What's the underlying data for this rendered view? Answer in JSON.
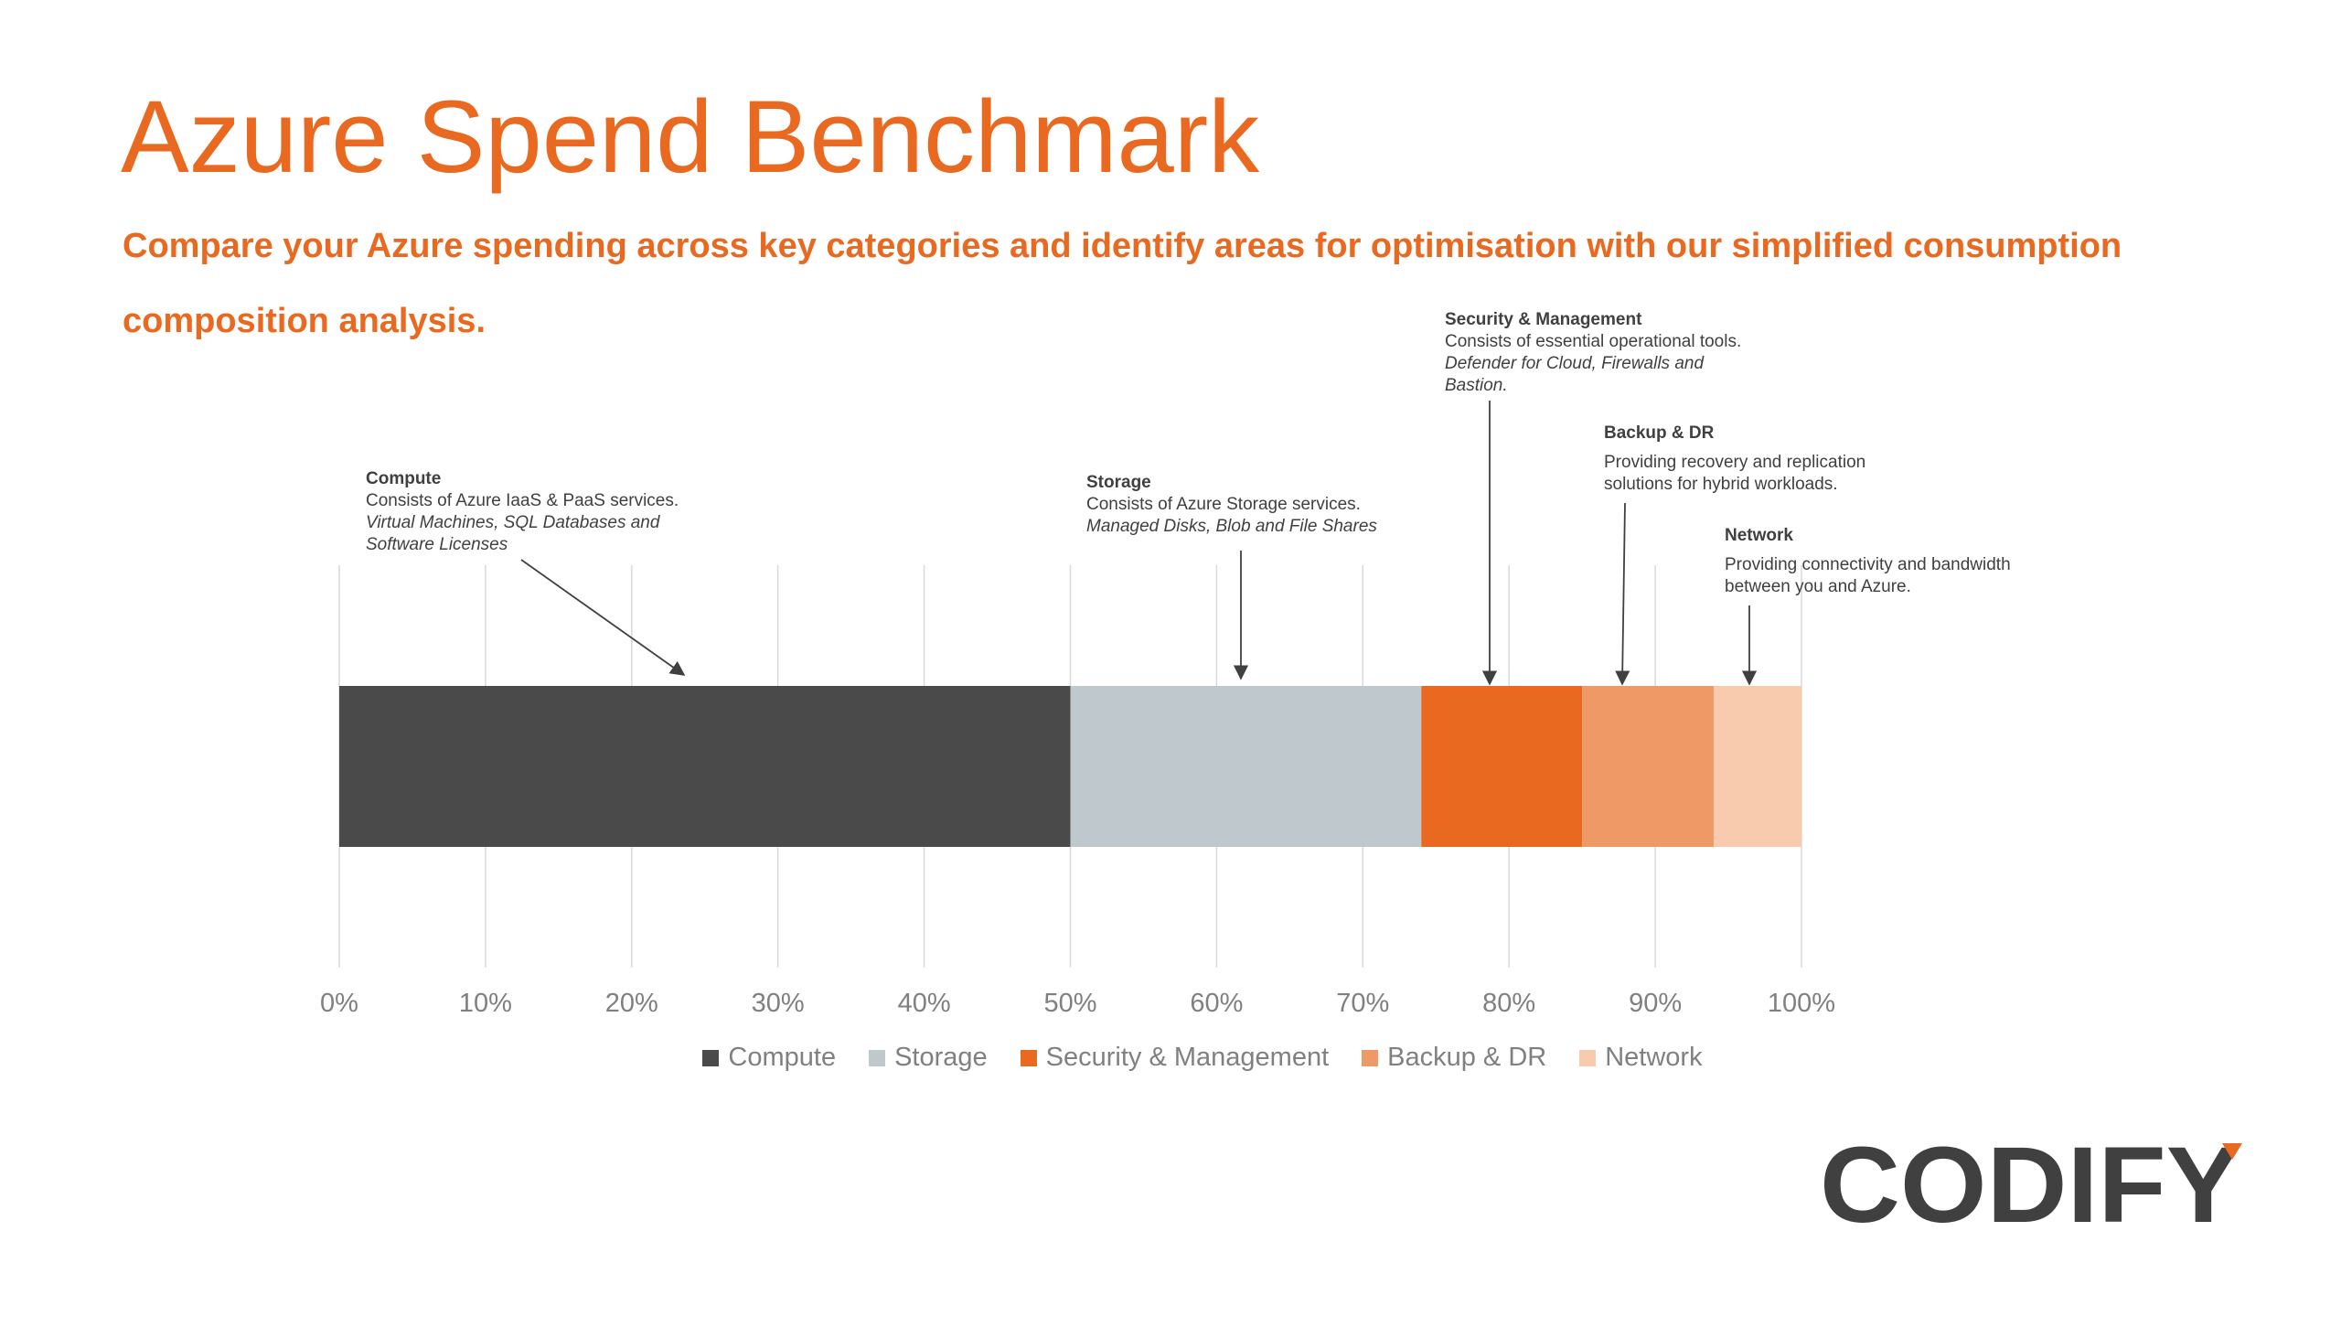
{
  "title": "Azure Spend Benchmark",
  "subtitle": "Compare your Azure spending across key categories and identify areas for optimisation with our simplified consumption composition analysis.",
  "annotations": {
    "compute": {
      "heading": "Compute",
      "line1": "Consists of Azure IaaS & PaaS services.",
      "line2": "Virtual Machines, SQL Databases and",
      "line3": "Software Licenses"
    },
    "storage": {
      "heading": "Storage",
      "line1": "Consists of Azure Storage services.",
      "line2": "Managed Disks, Blob and File Shares"
    },
    "security": {
      "heading": "Security & Management",
      "line1": "Consists of essential operational tools.",
      "line2": "Defender for Cloud, Firewalls and",
      "line3": "Bastion."
    },
    "backup": {
      "heading": "Backup & DR",
      "line1": "Providing recovery and replication",
      "line2": "solutions for hybrid workloads."
    },
    "network": {
      "heading": "Network",
      "line1": "Providing connectivity and bandwidth",
      "line2": "between you and Azure."
    }
  },
  "chart_data": {
    "type": "bar",
    "orientation": "horizontal",
    "stacked": true,
    "xlim": [
      0,
      100
    ],
    "ticks": [
      "0%",
      "10%",
      "20%",
      "30%",
      "40%",
      "50%",
      "60%",
      "70%",
      "80%",
      "90%",
      "100%"
    ],
    "grid": true,
    "legend_position": "bottom",
    "series": [
      {
        "name": "Compute",
        "value": 50,
        "color": "#4A4A4A"
      },
      {
        "name": "Storage",
        "value": 24,
        "color": "#BFC8CD"
      },
      {
        "name": "Security & Management",
        "value": 11,
        "color": "#E8691F"
      },
      {
        "name": "Backup & DR",
        "value": 9,
        "color": "#EF9966"
      },
      {
        "name": "Network",
        "value": 6,
        "color": "#F8CAAE"
      }
    ]
  },
  "logo": {
    "text": "CODIFY",
    "accent": "#E8691F",
    "color": "#404040"
  }
}
